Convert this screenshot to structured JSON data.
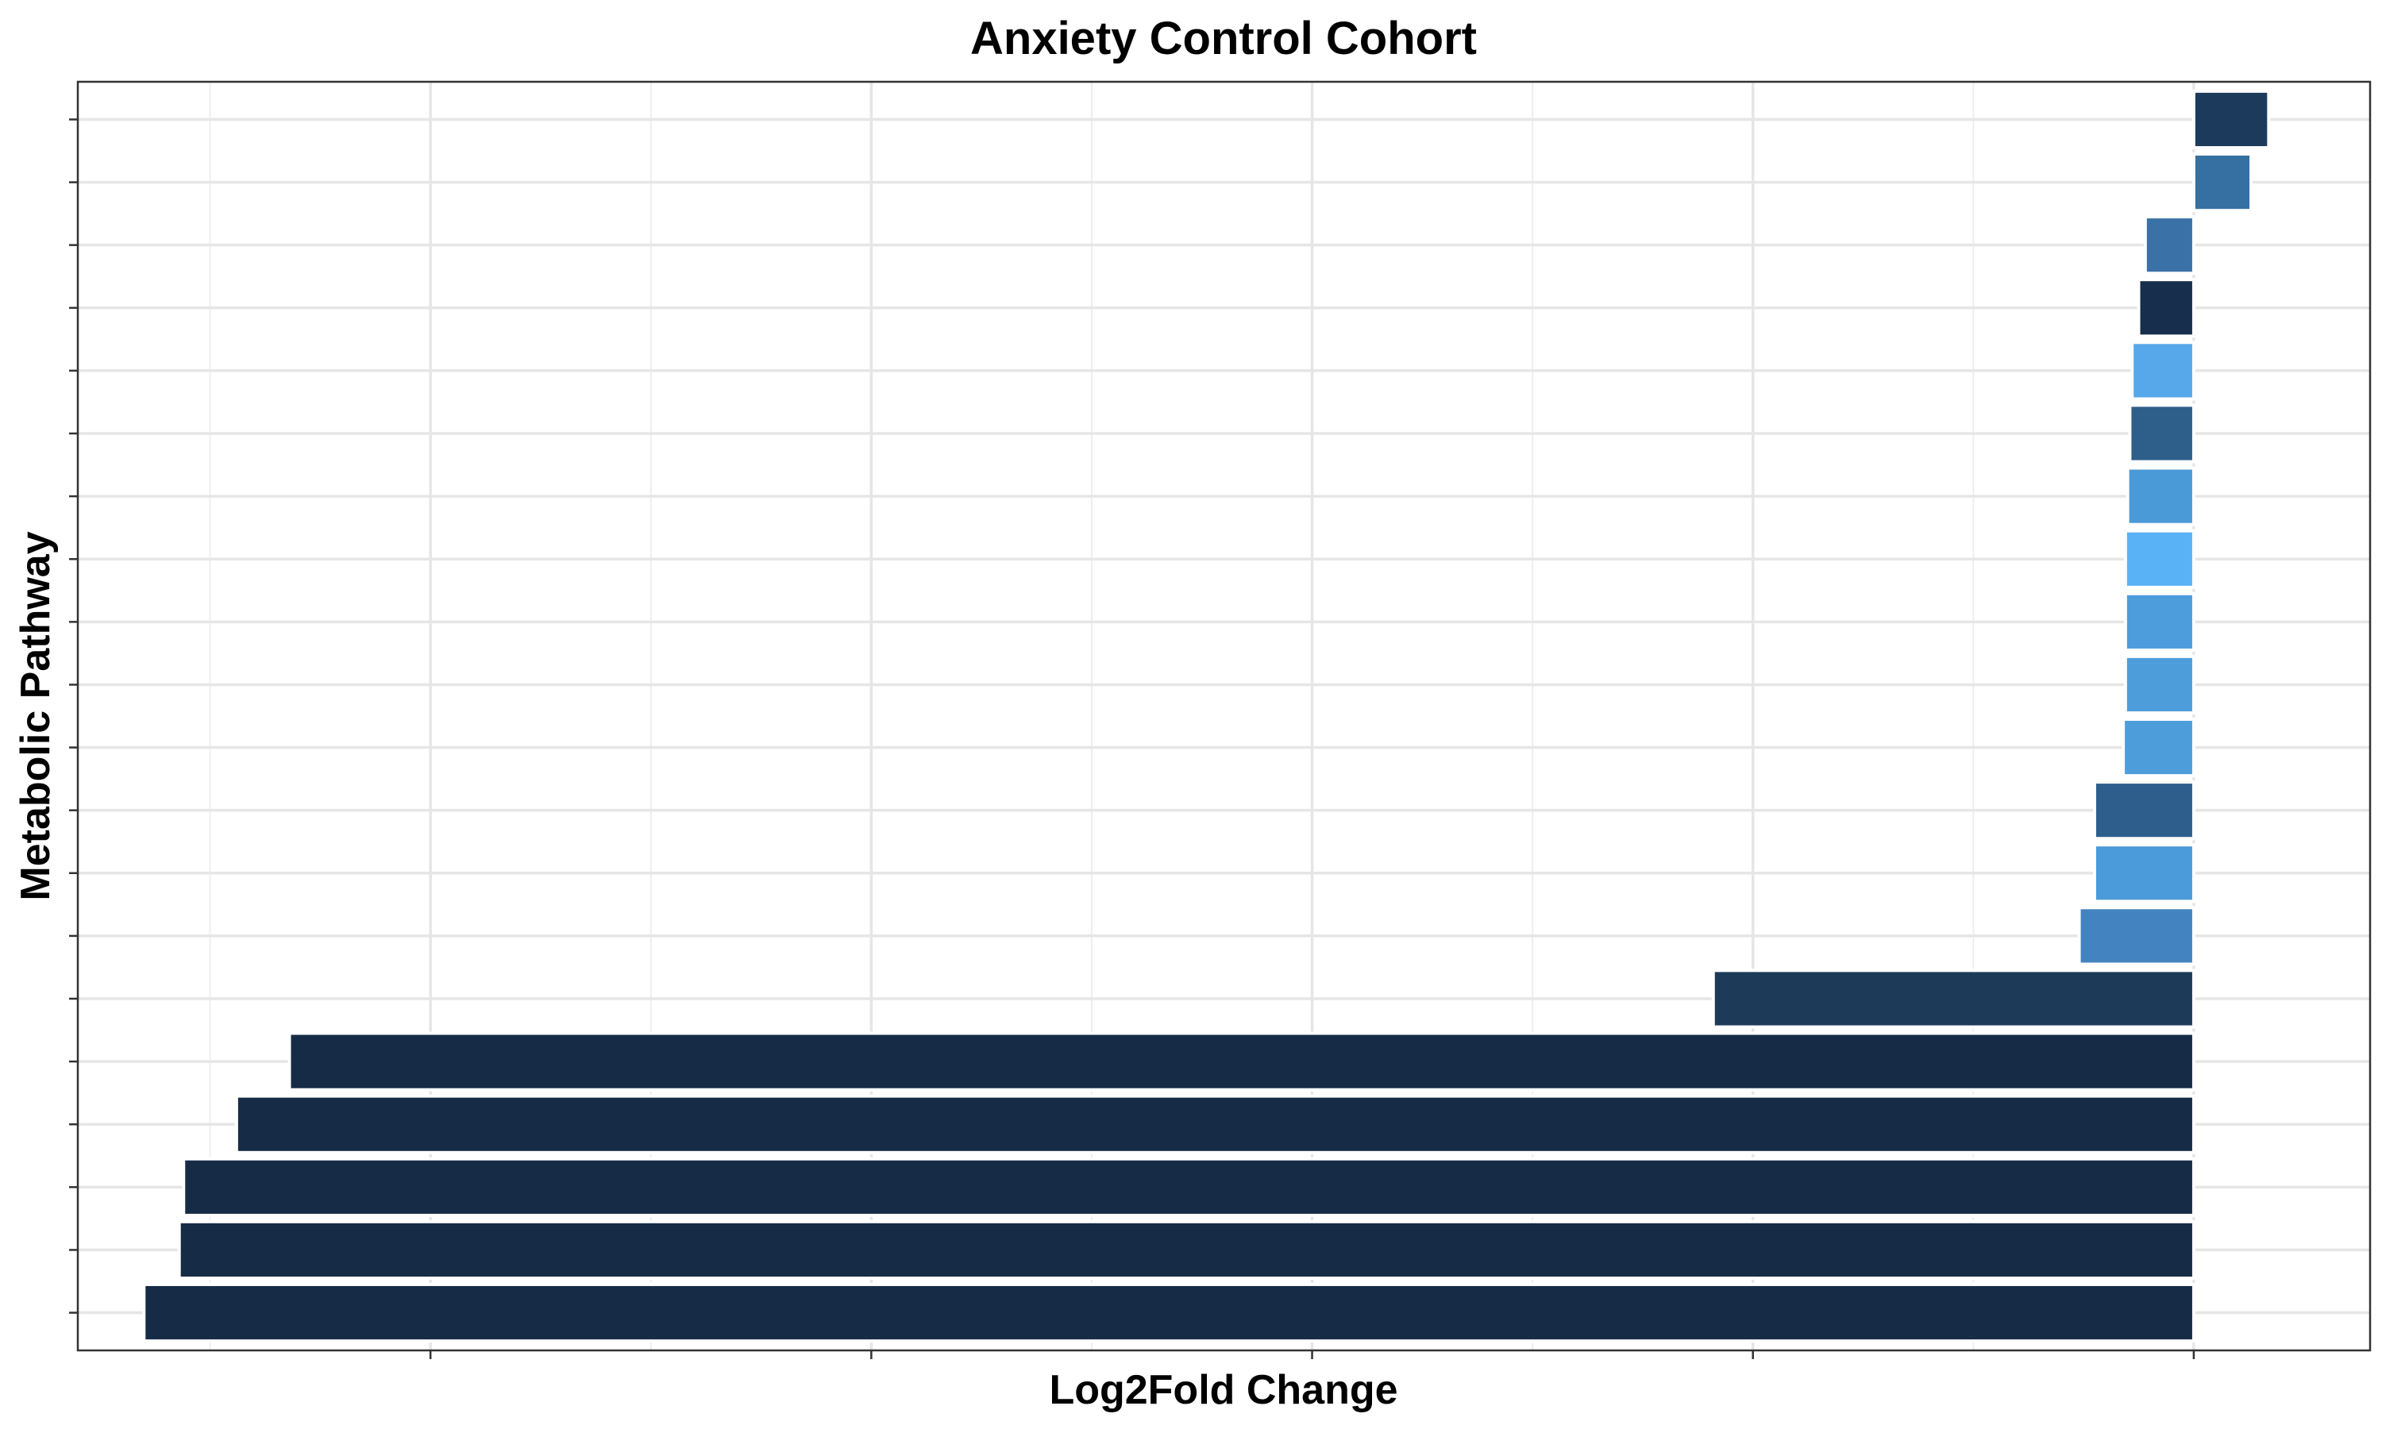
{
  "chart_data": {
    "type": "bar",
    "orientation": "horizontal",
    "title": "Anxiety Control Cohort",
    "xlabel": "Log2Fold Change",
    "ylabel": "Metabolic Pathway",
    "x_tick_labels_visible": false,
    "y_tick_labels_visible": false,
    "xlim": [
      -4.8,
      0.4
    ],
    "x_major_ticks": [
      -4,
      -3,
      -2,
      -1,
      0
    ],
    "x_minor_gridlines": [
      -4.5,
      -3.5,
      -2.5,
      -1.5,
      -0.5
    ],
    "grid": true,
    "legend": "none",
    "bars": [
      {
        "value": 0.17,
        "color": "#1c3a5c"
      },
      {
        "value": 0.13,
        "color": "#366fa2"
      },
      {
        "value": -0.11,
        "color": "#3a72a8"
      },
      {
        "value": -0.125,
        "color": "#172e4c"
      },
      {
        "value": -0.14,
        "color": "#56a8ea"
      },
      {
        "value": -0.145,
        "color": "#2e5f8b"
      },
      {
        "value": -0.15,
        "color": "#4b9ad8"
      },
      {
        "value": -0.155,
        "color": "#5ab2f6"
      },
      {
        "value": -0.155,
        "color": "#4d9cdb"
      },
      {
        "value": -0.155,
        "color": "#4e9ddb"
      },
      {
        "value": -0.16,
        "color": "#4e9ddb"
      },
      {
        "value": -0.225,
        "color": "#2e5f8c"
      },
      {
        "value": -0.225,
        "color": "#4b9ad9"
      },
      {
        "value": -0.26,
        "color": "#4383c0"
      },
      {
        "value": -1.09,
        "color": "#1e3a59"
      },
      {
        "value": -4.32,
        "color": "#162b45"
      },
      {
        "value": -4.44,
        "color": "#162b45"
      },
      {
        "value": -4.56,
        "color": "#162b45"
      },
      {
        "value": -4.57,
        "color": "#162b45"
      },
      {
        "value": -4.65,
        "color": "#162b45"
      }
    ]
  }
}
